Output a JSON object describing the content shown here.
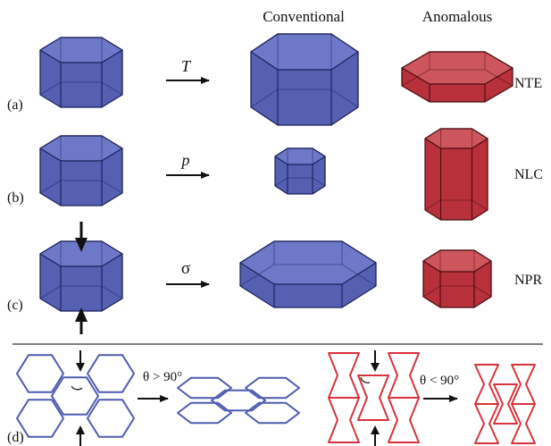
{
  "headers": {
    "conventional": "Conventional",
    "anomalous": "Anomalous"
  },
  "rows": [
    {
      "label": "(a)",
      "stimulus": "T",
      "property": "NTE"
    },
    {
      "label": "(b)",
      "stimulus": "p",
      "property": "NLC"
    },
    {
      "label": "(c)",
      "stimulus": "σ",
      "property": "NPR"
    }
  ],
  "panel_d": {
    "label": "(d)",
    "conventional_angle": "θ > 90°",
    "anomalous_angle": "θ < 90°"
  },
  "colors": {
    "blue_side": "#5560b3",
    "blue_top": "#6e78c8",
    "blue_edge": "#1b1f58",
    "red_side": "#b7303a",
    "red_top": "#cd555c",
    "red_edge": "#4a0d12",
    "blue_line": "#4f5bb0",
    "red_line": "#d8323c"
  }
}
